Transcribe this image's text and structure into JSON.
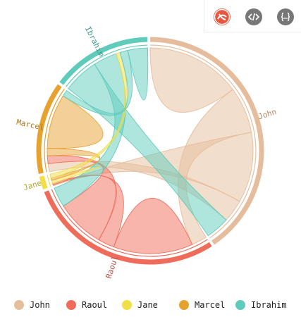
{
  "toolbar": {
    "icons": [
      "logo-icon",
      "code-icon",
      "json-icon"
    ],
    "colors": {
      "logo": "#e8573f",
      "code": "#777777",
      "json": "#777777"
    }
  },
  "chart_data": {
    "type": "chord",
    "groups": [
      {
        "name": "John",
        "color": "#e6bd9c"
      },
      {
        "name": "Raoul",
        "color": "#ef6b5a"
      },
      {
        "name": "Jane",
        "color": "#f2de47"
      },
      {
        "name": "Marcel",
        "color": "#e6a22f"
      },
      {
        "name": "Ibrahim",
        "color": "#5ecbbb"
      }
    ],
    "matrix": [
      [
        11975,
        5871,
        8916,
        2868,
        3000
      ],
      [
        1951,
        10048,
        2060,
        6171,
        2500
      ],
      [
        100,
        200,
        400,
        300,
        500
      ],
      [
        1013,
        990,
        940,
        6907,
        800
      ],
      [
        4500,
        3000,
        500,
        1000,
        2500
      ]
    ],
    "legend_position": "bottom"
  }
}
